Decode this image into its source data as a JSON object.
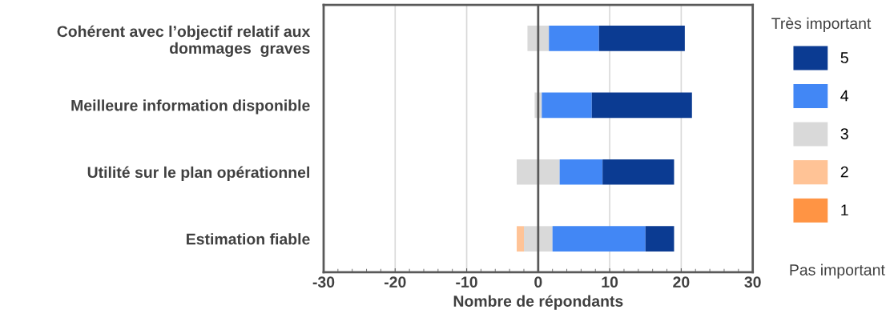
{
  "chart_data": {
    "type": "bar",
    "orientation": "horizontal",
    "stacked": true,
    "categories": [
      "Cohérent avec l’objectif relatif aux\ndommages  graves",
      "Meilleure information disponible",
      "Utilité sur le plan opérationnel",
      "Estimation fiable"
    ],
    "series": [
      {
        "color": "#d9d9d9",
        "values": [
          -1.5,
          -0.5,
          -3,
          -2
        ]
      },
      {
        "name": "2",
        "color": "#ffc396",
        "values": [
          0,
          0,
          0,
          -1
        ]
      },
      {
        "name": "1",
        "color": "#ff9444",
        "values": [
          0,
          0,
          0,
          0
        ]
      },
      {
        "name": "3",
        "color": "#d9d9d9",
        "values": [
          1.5,
          0.5,
          3,
          2
        ]
      },
      {
        "name": "4",
        "color": "#4287f5",
        "values": [
          7,
          7,
          6,
          13
        ]
      },
      {
        "name": "5",
        "color": "#0b3b92",
        "values": [
          12,
          14,
          10,
          4
        ]
      }
    ],
    "xlabel": "Nombre de répondants",
    "xlim": [
      -30,
      30
    ],
    "xticks": [
      -30,
      -20,
      -10,
      0,
      10,
      20,
      30
    ],
    "grid": "x",
    "legend": "right",
    "legend_title": "Très important",
    "annotations": [
      "Pas important"
    ],
    "ref_lines": [
      {
        "axis": "x",
        "value": 0,
        "color": "#595959"
      }
    ]
  }
}
